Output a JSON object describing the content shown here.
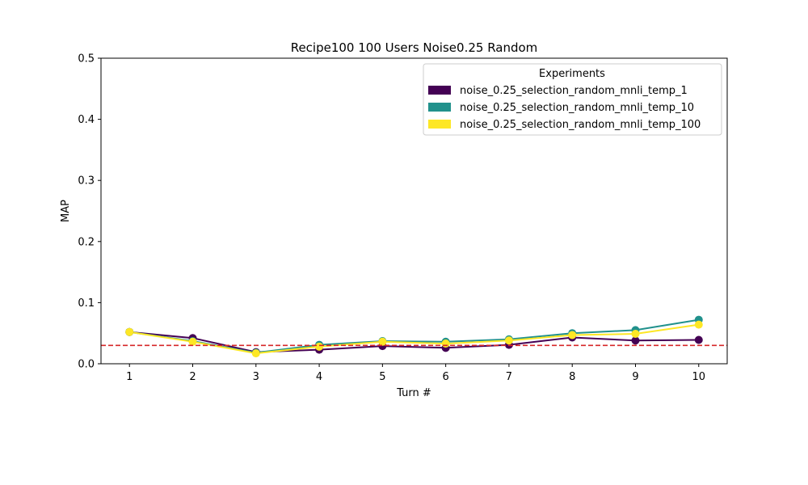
{
  "chart_data": {
    "type": "line",
    "title": "Recipe100 100 Users Noise0.25 Random",
    "xlabel": "Turn #",
    "ylabel": "MAP",
    "x": [
      1,
      2,
      3,
      4,
      5,
      6,
      7,
      8,
      9,
      10
    ],
    "xlim": [
      0.55,
      10.45
    ],
    "ylim": [
      0,
      0.5
    ],
    "yticks": [
      "0.0",
      "0.1",
      "0.2",
      "0.3",
      "0.4",
      "0.5"
    ],
    "xticks": [
      "1",
      "2",
      "3",
      "4",
      "5",
      "6",
      "7",
      "8",
      "9",
      "10"
    ],
    "grid": false,
    "legend": {
      "title": "Experiments",
      "placement": "top-right"
    },
    "series": [
      {
        "name": "noise_0.25_selection_random_mnli_temp_1",
        "color": "#440154",
        "values": [
          0.052,
          0.042,
          0.019,
          0.023,
          0.029,
          0.026,
          0.031,
          0.043,
          0.038,
          0.039
        ]
      },
      {
        "name": "noise_0.25_selection_random_mnli_temp_10",
        "color": "#21918c",
        "values": [
          0.052,
          0.037,
          0.018,
          0.031,
          0.037,
          0.036,
          0.04,
          0.05,
          0.055,
          0.072
        ]
      },
      {
        "name": "noise_0.25_selection_random_mnli_temp_100",
        "color": "#fde725",
        "values": [
          0.052,
          0.036,
          0.017,
          0.028,
          0.036,
          0.033,
          0.038,
          0.047,
          0.049,
          0.064
        ]
      }
    ],
    "reference_line": {
      "y": 0.03,
      "color": "#d62728",
      "style": "dashed"
    }
  }
}
